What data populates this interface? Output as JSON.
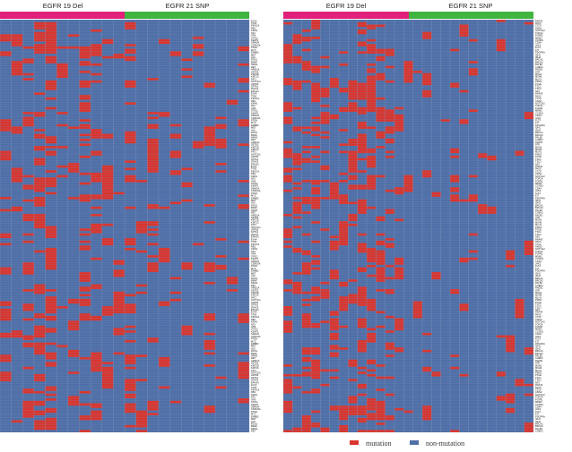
{
  "colors": {
    "mutation": "#d9352e",
    "non_mutation": "#4f6fa8",
    "grid_line": "#8ea0bf",
    "group_19del": "#e0207a",
    "group_21snp": "#3fb43f"
  },
  "legend": {
    "mutation_label": "mutation",
    "non_mutation_label": "non-mutation"
  },
  "chart_data": [
    {
      "type": "heatmap",
      "groups": [
        {
          "name": "EGFR 19 Del",
          "columns": 12
        },
        {
          "name": "EGFR 21 SNP",
          "columns": 10
        }
      ],
      "row_count": 170,
      "rows_sample_labels": [
        "EYA4",
        "TP53",
        "PIK3CA",
        "RB1",
        "KRAS",
        "NF1",
        "ATM",
        "STK11",
        "KEAP1",
        "SMAD4",
        "CDKN2A",
        "PTEN",
        "MYC",
        "ERBB2",
        "MET",
        "ALK",
        "ROS1",
        "BRAF",
        "NRAS",
        "RET",
        "ARID1A",
        "SETD2",
        "KMT2D",
        "KMT2C",
        "FAT1",
        "NOTCH1",
        "LRP1B",
        "SPTA1",
        "ZFHX3",
        "EPHA3"
      ],
      "mutation_density": {
        "EGFR 19 Del": 0.22,
        "EGFR 21 SNP": 0.08
      }
    },
    {
      "type": "heatmap",
      "groups": [
        {
          "name": "EGFR 19 Del",
          "columns": 12
        },
        {
          "name": "EGFR 21 SNP",
          "columns": 15
        }
      ],
      "row_count": 170,
      "rows_sample_labels": [
        "RNF43",
        "PAX5",
        "CTCF",
        "AXIN2",
        "NOTCH2",
        "TOP2A",
        "FGFR1",
        "MDM2",
        "CCND1",
        "CDK4",
        "JAK2",
        "FLT3",
        "KIT",
        "PDGFRA",
        "IDH1",
        "IDH2",
        "BRCA1",
        "BRCA2",
        "PALB2",
        "CHEK2",
        "RAD51",
        "ATR",
        "MSH2",
        "MSH6",
        "MLH1",
        "PMS2",
        "POLE",
        "TSC1",
        "TSC2",
        "NF2"
      ],
      "mutation_density": {
        "EGFR 19 Del": 0.28,
        "EGFR 21 SNP": 0.06
      }
    }
  ]
}
